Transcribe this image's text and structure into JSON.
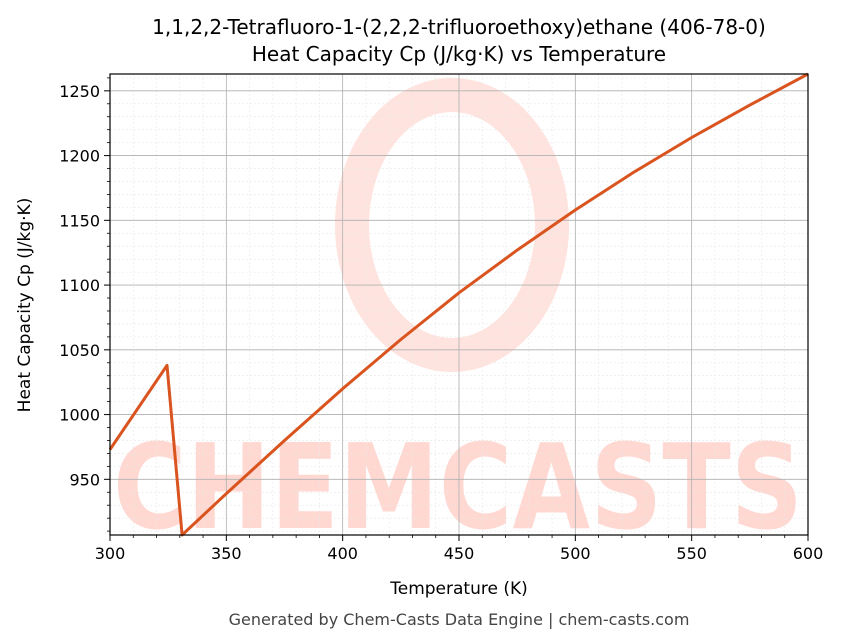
{
  "chart_data": {
    "type": "line",
    "title": "1,1,2,2-Tetrafluoro-1-(2,2,2-trifluoroethoxy)ethane (406-78-0)",
    "subtitle": "Heat Capacity Cp (J/kg·K) vs Temperature",
    "xlabel": "Temperature (K)",
    "ylabel": "Heat Capacity Cp (J/kg·K)",
    "xlim": [
      300,
      600
    ],
    "ylim": [
      907,
      1263
    ],
    "x_ticks": [
      300,
      350,
      400,
      450,
      500,
      550,
      600
    ],
    "y_ticks": [
      950,
      1000,
      1050,
      1100,
      1150,
      1200,
      1250
    ],
    "grid": true,
    "line_color": "#d9541e",
    "series": [
      {
        "x": [
          300,
          324.5,
          331,
          350,
          375,
          400,
          425,
          450,
          475,
          500,
          525,
          550,
          575,
          600
        ],
        "values": [
          973,
          1038,
          907,
          939,
          980,
          1020,
          1058,
          1094,
          1127,
          1158,
          1187,
          1214,
          1239,
          1263
        ]
      }
    ]
  },
  "watermark": {
    "text": "CHEMCASTS",
    "color": "#ffd8d2"
  },
  "footer": "Generated by Chem-Casts Data Engine | chem-casts.com"
}
